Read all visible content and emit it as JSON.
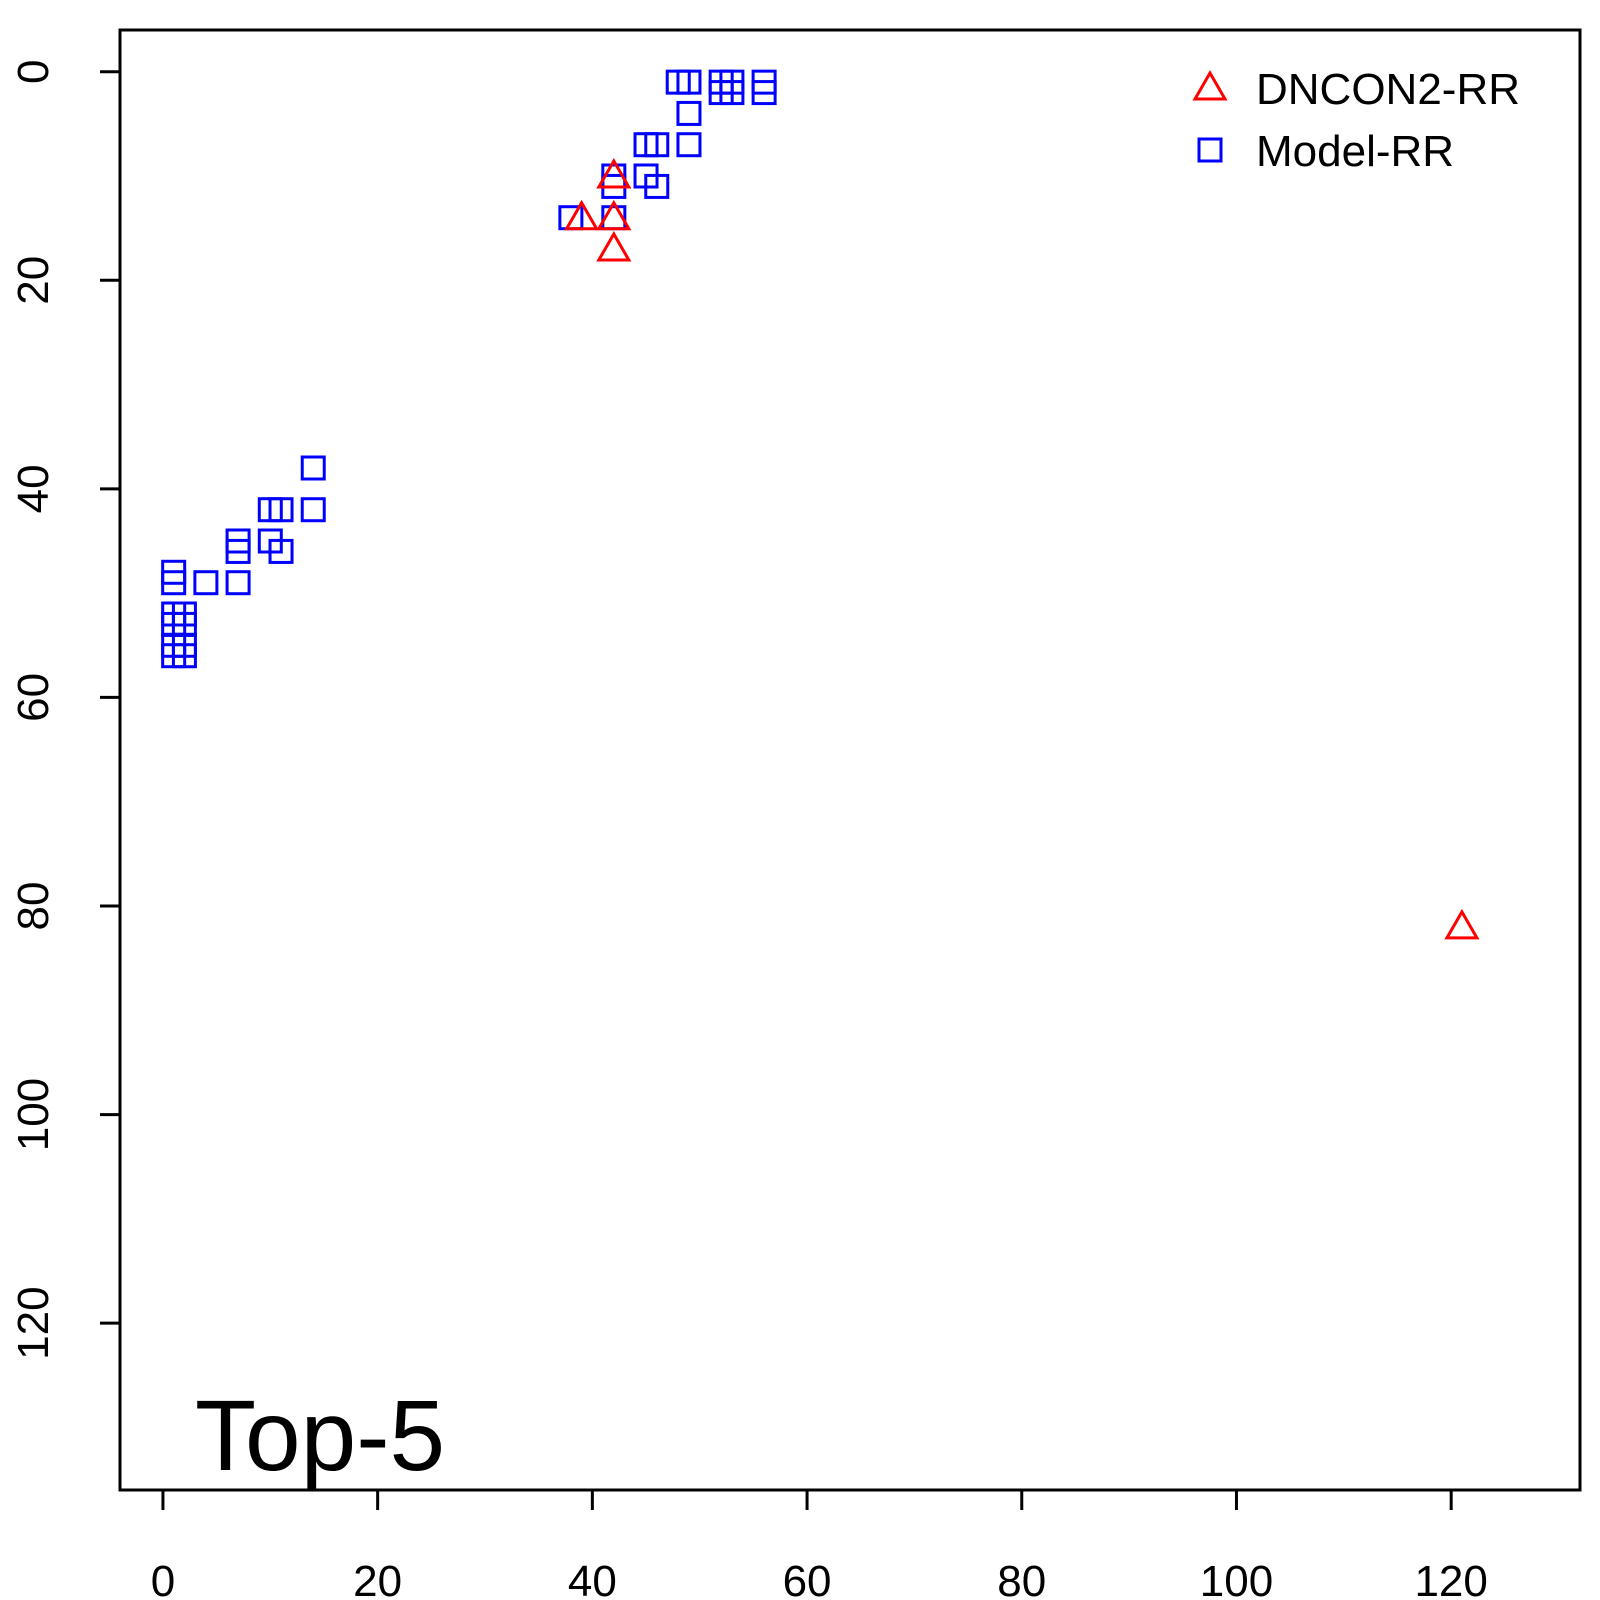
{
  "chart_data": {
    "type": "scatter",
    "title": "",
    "xlabel": "",
    "ylabel": "",
    "xlim": [
      -4,
      132
    ],
    "ylim": [
      136,
      -4
    ],
    "y_axis_reversed": true,
    "grid": false,
    "legend_position": "top-right",
    "annotation": "Top-5",
    "x_ticks": [
      0,
      20,
      40,
      60,
      80,
      100,
      120
    ],
    "x_tick_labels": [
      "0",
      "20",
      "40",
      "60",
      "80",
      "100",
      "120"
    ],
    "y_ticks": [
      0,
      20,
      40,
      60,
      80,
      100,
      120
    ],
    "y_tick_labels": [
      "0",
      "20",
      "40",
      "60",
      "80",
      "100",
      "120"
    ],
    "series": [
      {
        "name": "DNCON2-RR",
        "marker": "triangle",
        "color": "#ff0000",
        "points": [
          [
            42,
            10
          ],
          [
            39,
            14
          ],
          [
            42,
            14
          ],
          [
            42,
            17
          ],
          [
            121,
            82
          ]
        ]
      },
      {
        "name": "Model-RR",
        "marker": "square",
        "color": "#0000ff",
        "points": [
          [
            48,
            1
          ],
          [
            49,
            1
          ],
          [
            52,
            2
          ],
          [
            53,
            2
          ],
          [
            52,
            1
          ],
          [
            53,
            1
          ],
          [
            56,
            2
          ],
          [
            56,
            1
          ],
          [
            49,
            4
          ],
          [
            45,
            7
          ],
          [
            46,
            7
          ],
          [
            49,
            7
          ],
          [
            42,
            10
          ],
          [
            45,
            10
          ],
          [
            42,
            11
          ],
          [
            46,
            11
          ],
          [
            38,
            14
          ],
          [
            42,
            14
          ],
          [
            14,
            38
          ],
          [
            10,
            42
          ],
          [
            11,
            42
          ],
          [
            14,
            42
          ],
          [
            7,
            45
          ],
          [
            10,
            45
          ],
          [
            7,
            46
          ],
          [
            11,
            46
          ],
          [
            1,
            48
          ],
          [
            1,
            49
          ],
          [
            4,
            49
          ],
          [
            7,
            49
          ],
          [
            1,
            52
          ],
          [
            2,
            52
          ],
          [
            1,
            53
          ],
          [
            2,
            53
          ],
          [
            1,
            55
          ],
          [
            2,
            55
          ],
          [
            1,
            56
          ],
          [
            2,
            56
          ]
        ]
      }
    ]
  }
}
